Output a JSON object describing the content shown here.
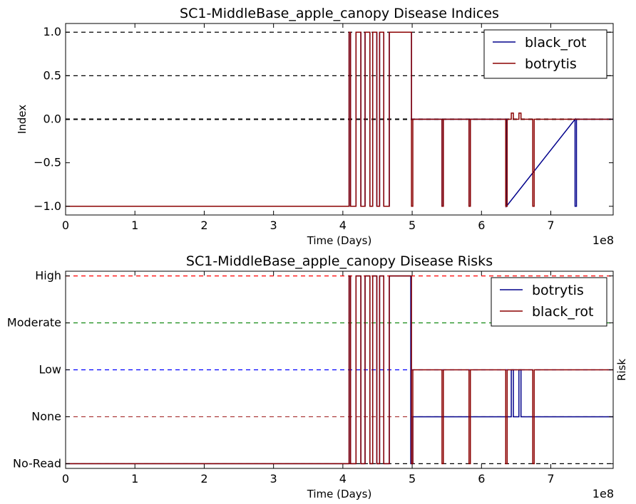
{
  "chart_data": [
    {
      "type": "line",
      "title": "SC1-MiddleBase_apple_canopy Disease Indices",
      "xlabel": "Time (Days)",
      "ylabel": "Index",
      "x_offset_label": "1e8",
      "xlim": [
        0,
        7.9
      ],
      "ylim": [
        -1.1,
        1.1
      ],
      "x_scale_note": "x values in units of 1e8",
      "xticks": [
        "0",
        "1",
        "2",
        "3",
        "4",
        "5",
        "6",
        "7"
      ],
      "yticks": [
        "1.0",
        "0.5",
        "0.0",
        "−0.5",
        "−1.0"
      ],
      "reference_lines": [
        {
          "y": 1.0,
          "color": "#000000",
          "style": "dashed"
        },
        {
          "y": 0.5,
          "color": "#000000",
          "style": "dashed"
        },
        {
          "y": 0.0,
          "color": "#000000",
          "style": "dashed"
        }
      ],
      "legend": {
        "placement": "top-right"
      },
      "series": [
        {
          "name": "black_rot",
          "color": "#00008b",
          "x": [
            0,
            4.09,
            4.09,
            4.11,
            4.11,
            4.19,
            4.19,
            4.26,
            4.26,
            4.32,
            4.32,
            4.39,
            4.39,
            4.43,
            4.43,
            4.49,
            4.49,
            4.53,
            4.53,
            4.59,
            4.59,
            4.67,
            4.67,
            4.99,
            4.99,
            5.01,
            5.01,
            5.43,
            5.43,
            5.45,
            5.45,
            5.82,
            5.82,
            5.84,
            5.84,
            6.36,
            6.36,
            7.35,
            7.35,
            7.37,
            7.37,
            7.9
          ],
          "y": [
            -1,
            -1,
            1,
            1,
            -1,
            -1,
            1,
            1,
            -1,
            -1,
            1,
            1,
            -1,
            -1,
            1,
            1,
            -1,
            -1,
            1,
            1,
            -1,
            -1,
            1,
            1,
            0,
            0,
            0,
            0,
            -1,
            -1,
            0,
            0,
            -1,
            -1,
            0,
            0,
            -1,
            0,
            -1,
            -1,
            0,
            0
          ]
        },
        {
          "name": "botrytis",
          "color": "#8b0000",
          "x": [
            0,
            4.09,
            4.09,
            4.11,
            4.11,
            4.19,
            4.19,
            4.26,
            4.26,
            4.32,
            4.32,
            4.39,
            4.39,
            4.43,
            4.43,
            4.49,
            4.49,
            4.53,
            4.53,
            4.59,
            4.59,
            4.67,
            4.67,
            4.99,
            4.99,
            5.01,
            5.01,
            5.43,
            5.43,
            5.45,
            5.45,
            5.82,
            5.82,
            5.84,
            5.84,
            6.35,
            6.35,
            6.37,
            6.37,
            6.43,
            6.43,
            6.46,
            6.46,
            6.54,
            6.54,
            6.57,
            6.57,
            6.74,
            6.74,
            6.76,
            6.76,
            7.9
          ],
          "y": [
            -1,
            -1,
            1,
            1,
            -1,
            -1,
            1,
            1,
            -1,
            -1,
            1,
            1,
            -1,
            -1,
            1,
            1,
            -1,
            -1,
            1,
            1,
            -1,
            -1,
            1,
            1,
            -1,
            -1,
            0,
            0,
            -1,
            -1,
            0,
            0,
            -1,
            -1,
            0,
            0,
            -1,
            -1,
            0,
            0,
            0.07,
            0.07,
            0,
            0,
            0.07,
            0.07,
            0,
            0,
            -1,
            -1,
            0,
            0
          ]
        }
      ]
    },
    {
      "type": "line",
      "title": "SC1-MiddleBase_apple_canopy Disease Risks",
      "xlabel": "Time (Days)",
      "ylabel": "Risk",
      "x_offset_label": "1e8",
      "xlim": [
        0,
        7.9
      ],
      "ylim": [
        -0.1,
        4.1
      ],
      "xticks": [
        "0",
        "1",
        "2",
        "3",
        "4",
        "5",
        "6",
        "7"
      ],
      "ycategories": [
        "No-Read",
        "None",
        "Low",
        "Moderate",
        "High"
      ],
      "reference_lines": [
        {
          "y": 4,
          "color": "#ff0000",
          "style": "dashed"
        },
        {
          "y": 3,
          "color": "#008000",
          "style": "dashed"
        },
        {
          "y": 2,
          "color": "#0000ff",
          "style": "dashed"
        },
        {
          "y": 1,
          "color": "#a52a2a",
          "style": "dashed"
        },
        {
          "y": 0,
          "color": "#000000",
          "style": "dashed"
        }
      ],
      "legend": {
        "placement": "top-right"
      },
      "series": [
        {
          "name": "botrytis",
          "color": "#00008b",
          "x": [
            0,
            4.09,
            4.09,
            4.11,
            4.11,
            4.19,
            4.19,
            4.26,
            4.26,
            4.32,
            4.32,
            4.39,
            4.39,
            4.43,
            4.43,
            4.49,
            4.49,
            4.53,
            4.53,
            4.59,
            4.59,
            4.67,
            4.67,
            4.98,
            4.98,
            5.01,
            5.01,
            6.43,
            6.43,
            6.46,
            6.46,
            6.54,
            6.54,
            6.57,
            6.57,
            7.9
          ],
          "y": [
            0,
            0,
            4,
            4,
            0,
            0,
            4,
            4,
            0,
            0,
            4,
            4,
            0,
            0,
            4,
            4,
            0,
            0,
            4,
            4,
            0,
            0,
            4,
            4,
            0,
            0,
            1,
            1,
            2,
            2,
            1,
            1,
            2,
            2,
            1,
            1
          ]
        },
        {
          "name": "black_rot",
          "color": "#8b0000",
          "x": [
            0,
            4.09,
            4.09,
            4.11,
            4.11,
            4.19,
            4.19,
            4.26,
            4.26,
            4.32,
            4.32,
            4.39,
            4.39,
            4.43,
            4.43,
            4.49,
            4.49,
            4.53,
            4.53,
            4.59,
            4.59,
            4.67,
            4.67,
            4.99,
            4.99,
            5.01,
            5.01,
            5.43,
            5.43,
            5.45,
            5.45,
            5.82,
            5.82,
            5.84,
            5.84,
            6.35,
            6.35,
            6.37,
            6.37,
            6.74,
            6.74,
            6.76,
            6.76,
            7.9
          ],
          "y": [
            0,
            0,
            4,
            4,
            0,
            0,
            4,
            4,
            0,
            0,
            4,
            4,
            0,
            0,
            4,
            4,
            0,
            0,
            4,
            4,
            0,
            0,
            4,
            4,
            0,
            0,
            2,
            2,
            0,
            0,
            2,
            2,
            0,
            0,
            2,
            2,
            0,
            0,
            2,
            2,
            0,
            0,
            2,
            2
          ]
        }
      ]
    }
  ]
}
